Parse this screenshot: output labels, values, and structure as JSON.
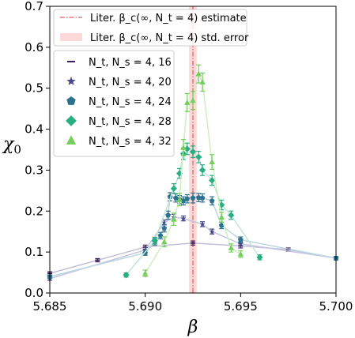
{
  "chart_data": {
    "type": "scatter",
    "xlabel": "β",
    "ylabel_main": "χ",
    "ylabel_sub": "0",
    "xlim": [
      5.685,
      5.7
    ],
    "ylim": [
      0.0,
      0.7
    ],
    "xticks": [
      "5.685",
      "5.690",
      "5.695",
      "5.700"
    ],
    "xtick_values": [
      5.685,
      5.69,
      5.695,
      5.7
    ],
    "yticks": [
      "0.0",
      "0.1",
      "0.2",
      "0.3",
      "0.4",
      "0.5",
      "0.6",
      "0.7"
    ],
    "ytick_values": [
      0.0,
      0.1,
      0.2,
      0.3,
      0.4,
      0.5,
      0.6,
      0.7
    ],
    "reference": {
      "estimate_label": "Liter. β_c(∞, N_t = 4) estimate",
      "std_label": "Liter. β_c(∞, N_t = 4) std. error",
      "value": 5.6925,
      "std": 0.0002,
      "line_color": "#e07a7a",
      "band_color": "#fcd9d9"
    },
    "legend_position": "upper-left",
    "series": [
      {
        "name": "N_t, N_s = 4, 16",
        "marker": "line",
        "color": "#3f1e5c",
        "line_color": "#c5bfd6",
        "points": [
          [
            5.685,
            0.048,
            0.004
          ],
          [
            5.6875,
            0.08,
            0.004
          ],
          [
            5.69,
            0.112,
            0.005
          ],
          [
            5.6925,
            0.122,
            0.005
          ],
          [
            5.695,
            0.115,
            0.005
          ],
          [
            5.6975,
            0.106,
            0.004
          ],
          [
            5.7,
            0.085,
            0.004
          ]
        ]
      },
      {
        "name": "N_t, N_s = 4, 20",
        "marker": "star",
        "color": "#47478a",
        "line_color": "#c3c6de",
        "points": [
          [
            5.685,
            0.035,
            0.004
          ],
          [
            5.69,
            0.105,
            0.006
          ],
          [
            5.691,
            0.172,
            0.006
          ],
          [
            5.6915,
            0.185,
            0.007
          ],
          [
            5.692,
            0.182,
            0.006
          ],
          [
            5.693,
            0.168,
            0.006
          ],
          [
            5.6935,
            0.15,
            0.006
          ],
          [
            5.695,
            0.12,
            0.005
          ],
          [
            5.7,
            0.085,
            0.004
          ]
        ]
      },
      {
        "name": "N_t, N_s = 4, 24",
        "marker": "pentagon",
        "color": "#2c728e",
        "line_color": "#bcd7e0",
        "points": [
          [
            5.685,
            0.04,
            0.004
          ],
          [
            5.69,
            0.098,
            0.006
          ],
          [
            5.6905,
            0.125,
            0.008
          ],
          [
            5.6908,
            0.14,
            0.008
          ],
          [
            5.691,
            0.158,
            0.009
          ],
          [
            5.6912,
            0.19,
            0.01
          ],
          [
            5.6913,
            0.235,
            0.01
          ],
          [
            5.6916,
            0.232,
            0.01
          ],
          [
            5.6918,
            0.228,
            0.01
          ],
          [
            5.692,
            0.225,
            0.01
          ],
          [
            5.6922,
            0.23,
            0.01
          ],
          [
            5.6925,
            0.232,
            0.012
          ],
          [
            5.6928,
            0.233,
            0.01
          ],
          [
            5.693,
            0.232,
            0.01
          ],
          [
            5.6935,
            0.225,
            0.01
          ],
          [
            5.694,
            0.165,
            0.008
          ],
          [
            5.695,
            0.13,
            0.007
          ],
          [
            5.7,
            0.085,
            0.004
          ]
        ]
      },
      {
        "name": "N_t, N_s = 4, 28",
        "marker": "diamond",
        "color": "#28ae80",
        "line_color": "#bfe4d4",
        "points": [
          [
            5.689,
            0.044,
            0.005
          ],
          [
            5.6905,
            0.128,
            0.008
          ],
          [
            5.6915,
            0.255,
            0.012
          ],
          [
            5.6918,
            0.292,
            0.012
          ],
          [
            5.692,
            0.34,
            0.014
          ],
          [
            5.6922,
            0.352,
            0.014
          ],
          [
            5.6925,
            0.345,
            0.014
          ],
          [
            5.6928,
            0.332,
            0.014
          ],
          [
            5.693,
            0.3,
            0.013
          ],
          [
            5.6935,
            0.275,
            0.012
          ],
          [
            5.694,
            0.215,
            0.012
          ],
          [
            5.6945,
            0.19,
            0.01
          ],
          [
            5.696,
            0.087,
            0.006
          ]
        ]
      },
      {
        "name": "N_t, N_s = 4, 32",
        "marker": "triangle",
        "color": "#75cf5a",
        "line_color": "#cfeec2",
        "points": [
          [
            5.69,
            0.048,
            0.008
          ],
          [
            5.691,
            0.125,
            0.012
          ],
          [
            5.6915,
            0.18,
            0.015
          ],
          [
            5.6918,
            0.228,
            0.015
          ],
          [
            5.692,
            0.355,
            0.02
          ],
          [
            5.6922,
            0.465,
            0.022
          ],
          [
            5.6925,
            0.47,
            0.022
          ],
          [
            5.6928,
            0.535,
            0.022
          ],
          [
            5.693,
            0.515,
            0.022
          ],
          [
            5.6935,
            0.32,
            0.018
          ],
          [
            5.694,
            0.185,
            0.012
          ],
          [
            5.6945,
            0.11,
            0.01
          ],
          [
            5.695,
            0.095,
            0.008
          ]
        ]
      }
    ]
  }
}
